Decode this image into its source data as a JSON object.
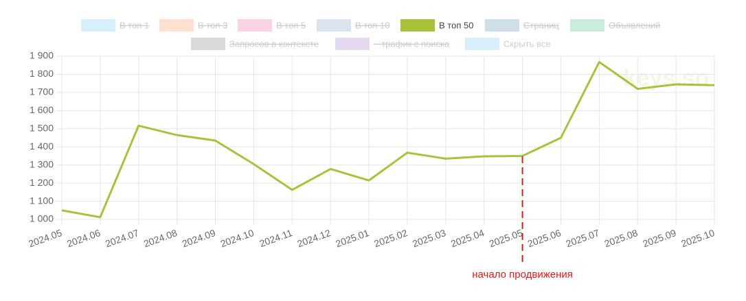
{
  "chart_data": {
    "type": "line",
    "categories": [
      "2024.05",
      "2024.06",
      "2024.07",
      "2024.08",
      "2024.09",
      "2024.10",
      "2024.11",
      "2024.12",
      "2025.01",
      "2025.02",
      "2025.03",
      "2025.04",
      "2025.05",
      "2025.06",
      "2025.07",
      "2025.08",
      "2025.09",
      "2025.10"
    ],
    "series": [
      {
        "name": "В топ 1",
        "color": "#d6f0fb",
        "hidden": true
      },
      {
        "name": "В топ 3",
        "color": "#fde0d0",
        "hidden": true
      },
      {
        "name": "В топ 5",
        "color": "#fbd3e6",
        "hidden": true
      },
      {
        "name": "В топ 10",
        "color": "#dbe3ef",
        "hidden": true
      },
      {
        "name": "В топ 50",
        "color": "#a8c23a",
        "hidden": false,
        "values": [
          1050,
          1012,
          1517,
          1465,
          1435,
          1305,
          1163,
          1278,
          1215,
          1368,
          1335,
          1348,
          1350,
          1450,
          1868,
          1720,
          1745,
          1740
        ]
      },
      {
        "name": "Страниц",
        "color": "#cfdfe8",
        "hidden": true
      },
      {
        "name": "Объявлений",
        "color": "#c9ecdb",
        "hidden": true
      },
      {
        "name": "Запросов в контексте",
        "color": "#dadada",
        "hidden": true
      },
      {
        "name": "~ трафик с поиска",
        "color": "#e6d8ef",
        "hidden": true
      }
    ],
    "hide_all_button": {
      "label": "Скрыть все",
      "color": "#d6f0fb"
    },
    "ylim": [
      1000,
      1900
    ],
    "yticks": [
      {
        "value": 1000,
        "label": "1 000"
      },
      {
        "value": 1100,
        "label": "1 100"
      },
      {
        "value": 1200,
        "label": "1 200"
      },
      {
        "value": 1300,
        "label": "1 300"
      },
      {
        "value": 1400,
        "label": "1 400"
      },
      {
        "value": 1500,
        "label": "1 500"
      },
      {
        "value": 1600,
        "label": "1 600"
      },
      {
        "value": 1700,
        "label": "1 700"
      },
      {
        "value": 1800,
        "label": "1 800"
      },
      {
        "value": 1900,
        "label": "1 900"
      }
    ],
    "grid": true,
    "annotation": {
      "text": "начало продвижения",
      "at": "2025.05",
      "color": "#e8141b"
    },
    "watermark": "keys.so"
  }
}
